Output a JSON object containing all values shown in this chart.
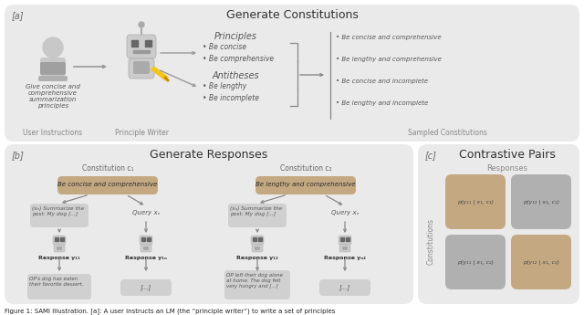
{
  "bg_color": "#ffffff",
  "panel_bg": "#eaeaea",
  "tan_color": "#c4a882",
  "light_gray": "#d0d0d0",
  "dark_gray": "#b0b0b0",
  "text_dark": "#333333",
  "text_mid": "#555555",
  "text_light": "#888888",
  "title_a": "Generate Constitutions",
  "title_b": "Generate Responses",
  "title_c": "Contrastive Pairs",
  "label_a": "[a]",
  "label_b": "[b]",
  "label_c": "[c]",
  "caption": "Figure 1: SAMI Illustration. [a]: A user instructs an LM (the “principle writer”) to write a set of principles",
  "principles_title": "Principles",
  "antitheses_title": "Antitheses",
  "principles": [
    "Be concise",
    "Be comprehensive"
  ],
  "antitheses": [
    "Be lengthy",
    "Be incomplete"
  ],
  "constitutions": [
    "Be concise and comprehensive",
    "Be lengthy and comprehensive",
    "Be concise and incomplete",
    "Be lengthy and incomplete"
  ],
  "user_label": "User Instructions",
  "writer_label": "Principle Writer",
  "sampled_label": "Sampled Constitutions",
  "user_text": "Give concise and\ncomprehensive\nsummarization\nprinciples",
  "const_c1": "Be concise and comprehensive",
  "const_c2": "Be lengthy and comprehensive",
  "responses_label": "Responses",
  "constitutions_label": "Constitutions",
  "query_label": "Query xₙ",
  "resp_y11": "Response y₁₁",
  "resp_y1n": "Response y₁ₙ",
  "resp_y12": "Response y₁₂",
  "resp_yn2": "Response yₙ₂",
  "query_text": "(xₙ) Summarize the\npost: My dog [...]",
  "resp_text_1": "OP's dog has eaten\ntheir favorite dessert.",
  "resp_text_2": "[...]",
  "resp_text_3": "OP left their dog alone\nat home. The dog felt\nvery hungry and [...]",
  "resp_text_4": "[...]",
  "cell_tl_label": "p(y₁₁ | x₁, c₁)",
  "cell_tr_label": "p(y₁₂ | x₁, c₁)",
  "cell_bl_label": "p(y₁₁ | x₁, c₂)",
  "cell_br_label": "p(y₁₂ | x₁, c₂)"
}
